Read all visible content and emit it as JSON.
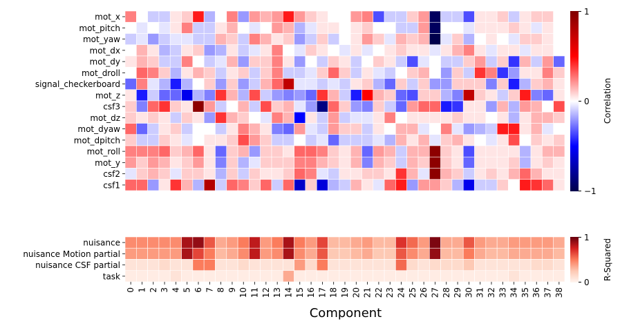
{
  "chart_data": [
    {
      "type": "heatmap",
      "name": "correlation",
      "rows": [
        "mot_x",
        "mot_pitch",
        "mot_yaw",
        "mot_dx",
        "mot_dy",
        "mot_droll",
        "signal_checkerboard",
        "mot_z",
        "csf3",
        "mot_dz",
        "mot_dyaw",
        "mot_dpitch",
        "mot_roll",
        "mot_y",
        "csf2",
        "csf1"
      ],
      "columns": [
        "0",
        "1",
        "2",
        "3",
        "4",
        "5",
        "6",
        "7",
        "8",
        "9",
        "10",
        "11",
        "12",
        "13",
        "14",
        "15",
        "16",
        "17",
        "18",
        "19",
        "20",
        "21",
        "22",
        "23",
        "24",
        "25",
        "26",
        "27",
        "28",
        "29",
        "30",
        "31",
        "32",
        "33",
        "34",
        "35",
        "36",
        "37",
        "38"
      ],
      "values": [
        [
          0.25,
          0,
          -0.1,
          -0.1,
          0.05,
          0.1,
          0.45,
          -0.15,
          0,
          0.25,
          -0.2,
          0.2,
          0.15,
          0.2,
          0.45,
          0.2,
          0.1,
          0.05,
          0,
          0,
          0.2,
          0.25,
          -0.35,
          -0.1,
          -0.1,
          0.1,
          0.2,
          -0.95,
          -0.1,
          -0.1,
          -0.35,
          0.05,
          0.05,
          0.1,
          -0.1,
          0.05,
          0.1,
          0.1,
          0
        ],
        [
          0,
          -0.05,
          0,
          -0.05,
          0.05,
          0.25,
          -0.1,
          -0.1,
          0.05,
          0.15,
          0,
          -0.05,
          0,
          0.2,
          0.15,
          -0.15,
          -0.05,
          0.05,
          0.05,
          0,
          0.05,
          0.1,
          0,
          0,
          -0.1,
          -0.1,
          0.2,
          -0.95,
          0,
          0,
          -0.05,
          0.05,
          0.05,
          0.05,
          0.1,
          0.05,
          -0.05,
          0.05,
          0
        ],
        [
          -0.1,
          -0.05,
          -0.2,
          -0.1,
          -0.05,
          -0.05,
          -0.1,
          -0.1,
          0.15,
          0.1,
          -0.1,
          0.25,
          0.15,
          0.05,
          0.1,
          -0.2,
          -0.1,
          0.1,
          -0.1,
          0,
          0.05,
          0.2,
          0.1,
          -0.05,
          0.15,
          0.1,
          0.15,
          -1,
          -0.05,
          0.1,
          -0.15,
          0,
          0.05,
          0,
          -0.05,
          0.1,
          0.1,
          0.05,
          0
        ],
        [
          0,
          0.15,
          0.05,
          -0.15,
          -0.1,
          0.05,
          0.1,
          -0.2,
          -0.15,
          0.05,
          -0.1,
          -0.05,
          0.05,
          0.25,
          0,
          -0.05,
          0.1,
          0.05,
          0,
          -0.05,
          0.05,
          -0.05,
          0,
          0.05,
          0.1,
          0.05,
          0.05,
          -0.05,
          0.05,
          0.15,
          0.25,
          0.05,
          -0.05,
          0.05,
          0.05,
          -0.05,
          0.05,
          0.05,
          0
        ],
        [
          0.05,
          0.15,
          0.1,
          -0.1,
          -0.1,
          0.25,
          0,
          -0.1,
          -0.05,
          0.15,
          -0.2,
          0.1,
          0.1,
          0.25,
          0.05,
          -0.2,
          0,
          -0.1,
          0.1,
          0.05,
          -0.1,
          0,
          0.1,
          0.05,
          -0.1,
          -0.35,
          -0.05,
          0,
          -0.1,
          -0.1,
          0.1,
          0.2,
          -0.1,
          0.1,
          -0.4,
          0.15,
          -0.1,
          0.2,
          -0.3
        ],
        [
          0,
          0.3,
          0.25,
          0.1,
          -0.15,
          0.05,
          0.15,
          0.1,
          -0.1,
          0.05,
          0.1,
          -0.1,
          0.1,
          0.25,
          -0.1,
          -0.1,
          -0.05,
          0.1,
          0.3,
          0.1,
          -0.1,
          0.05,
          -0.05,
          -0.1,
          0,
          0.1,
          0.15,
          0,
          -0.2,
          0.1,
          -0.1,
          0.4,
          0.25,
          -0.4,
          -0.2,
          0.05,
          0.05,
          0.25,
          0.1
        ],
        [
          -0.3,
          0.25,
          -0.05,
          -0.15,
          -0.45,
          -0.15,
          0,
          0.1,
          -0.2,
          0.1,
          -0.2,
          -0.1,
          0.15,
          0.3,
          0.75,
          -0.05,
          -0.05,
          -0.1,
          -0.05,
          -0.1,
          0.05,
          0.1,
          -0.15,
          -0.3,
          0.1,
          -0.1,
          0.1,
          -0.2,
          -0.2,
          0.1,
          0.1,
          0.1,
          -0.25,
          0.1,
          -0.45,
          -0.15,
          0.1,
          0.15,
          0.05
        ],
        [
          0.05,
          -0.45,
          -0.1,
          -0.3,
          -0.3,
          -0.55,
          -0.15,
          -0.25,
          0.4,
          0.15,
          -0.15,
          0.35,
          -0.1,
          -0.2,
          -0.25,
          -0.2,
          -0.3,
          0.4,
          0.15,
          -0.1,
          -0.45,
          0.5,
          0.15,
          0.1,
          -0.3,
          -0.35,
          0.1,
          0.1,
          -0.15,
          -0.25,
          0.75,
          0.1,
          0.05,
          -0.1,
          0.1,
          0.45,
          -0.25,
          -0.3,
          0.05
        ],
        [
          0.1,
          -0.25,
          0.3,
          0.4,
          0.1,
          0.05,
          0.95,
          0.2,
          -0.1,
          0,
          0.15,
          -0.1,
          0.35,
          0.1,
          0.15,
          -0.05,
          -0.2,
          -0.85,
          0.3,
          0.1,
          -0.2,
          -0.25,
          0.1,
          -0.1,
          -0.3,
          0.2,
          0.3,
          0.3,
          -0.45,
          -0.4,
          0.05,
          0.05,
          -0.2,
          0.15,
          -0.15,
          0.2,
          0.15,
          0,
          0.35
        ],
        [
          0.1,
          0.05,
          0.1,
          0.05,
          -0.1,
          0.1,
          0.05,
          -0.2,
          0.4,
          0.15,
          0.1,
          0,
          -0.05,
          0.25,
          0.15,
          -0.5,
          0.05,
          -0.1,
          0.2,
          -0.1,
          -0.05,
          -0.05,
          0.05,
          0.25,
          0,
          0.05,
          0.05,
          0.05,
          0.05,
          0.1,
          0.05,
          0.05,
          0,
          0.05,
          -0.15,
          0.05,
          0.15,
          0.15,
          0.1
        ],
        [
          0.3,
          -0.3,
          -0.1,
          0.05,
          0.1,
          -0.1,
          0,
          0,
          -0.1,
          0.05,
          0.25,
          0.15,
          0.05,
          -0.25,
          -0.3,
          0.2,
          -0.05,
          -0.1,
          0.2,
          0.1,
          0.1,
          -0.1,
          0.05,
          0,
          0.15,
          0.15,
          -0.05,
          0,
          0.25,
          -0.05,
          -0.2,
          -0.15,
          -0.1,
          0.45,
          0.45,
          0.05,
          0.15,
          -0.05,
          0
        ],
        [
          0.1,
          -0.1,
          -0.1,
          0.1,
          0.05,
          -0.05,
          0,
          0.05,
          0.05,
          0.1,
          0.35,
          0.2,
          0.1,
          -0.1,
          -0.1,
          0,
          -0.1,
          -0.05,
          -0.3,
          -0.1,
          -0.1,
          -0.1,
          -0.05,
          -0.15,
          0.15,
          0.05,
          0.15,
          -0.05,
          0.1,
          0.15,
          0.05,
          0,
          -0.05,
          0.05,
          0.35,
          0,
          0.1,
          0.05,
          0.1
        ],
        [
          0.25,
          0.25,
          0.25,
          0.3,
          0.1,
          0.15,
          0.3,
          0.05,
          -0.3,
          0.1,
          0.15,
          -0.2,
          0.1,
          0.1,
          0.05,
          0.3,
          0.3,
          0.25,
          0.1,
          0.05,
          0.15,
          -0.3,
          0.2,
          0.15,
          -0.1,
          0.15,
          0.15,
          0.95,
          0.1,
          0.05,
          -0.35,
          0.05,
          0.05,
          0.05,
          0.05,
          -0.15,
          0.05,
          0.15,
          0.15
        ],
        [
          0.2,
          0.1,
          0.2,
          0.15,
          0.05,
          0.1,
          0.2,
          0.05,
          -0.25,
          0.1,
          -0.15,
          -0.05,
          0.1,
          0.1,
          0.1,
          0.25,
          0.25,
          0.15,
          0.1,
          0.05,
          0.15,
          -0.25,
          0.15,
          0.1,
          -0.1,
          0.15,
          0.1,
          0.95,
          0.1,
          0.05,
          -0.3,
          0.05,
          0.05,
          0.05,
          0.1,
          -0.15,
          0.05,
          0.1,
          0.05
        ],
        [
          -0.05,
          0.1,
          0.15,
          0.1,
          -0.05,
          0.1,
          0.1,
          0.05,
          -0.15,
          0.1,
          -0.1,
          0.1,
          0.05,
          0.05,
          0.1,
          0.3,
          0.25,
          -0.05,
          -0.1,
          0.05,
          0.05,
          0.1,
          0.1,
          0.05,
          0.4,
          0.15,
          -0.05,
          0.95,
          0.15,
          0.1,
          -0.1,
          0.05,
          0.1,
          0.05,
          0.15,
          0.3,
          0.15,
          0.05,
          0.05
        ],
        [
          0.3,
          0.3,
          -0.2,
          0.05,
          0.4,
          0.15,
          -0.15,
          0.8,
          -0.1,
          0.3,
          0.25,
          0.1,
          0.3,
          -0.1,
          0.3,
          -0.65,
          0.1,
          -0.6,
          -0.15,
          -0.1,
          0.15,
          0.05,
          -0.05,
          0.3,
          0.45,
          -0.2,
          0.2,
          0.2,
          0.1,
          -0.15,
          -0.55,
          -0.1,
          -0.1,
          0.1,
          0,
          0.45,
          0.4,
          0.3,
          0.05
        ]
      ],
      "colorbar_label": "Correlation",
      "colorbar_ticks": [
        "1",
        "0",
        "−1"
      ],
      "vmin": -1,
      "vmax": 1,
      "colormap": "seismic",
      "colors": {
        "low": "#00004c",
        "mid_low": "#0000ff",
        "mid": "#ffffff",
        "mid_high": "#ff0000",
        "high": "#800000"
      }
    },
    {
      "type": "heatmap",
      "name": "r-squared",
      "rows": [
        "nuisance",
        "nuisance Motion partial",
        "nuisance CSF partial",
        "task"
      ],
      "columns": [
        "0",
        "1",
        "2",
        "3",
        "4",
        "5",
        "6",
        "7",
        "8",
        "9",
        "10",
        "11",
        "12",
        "13",
        "14",
        "15",
        "16",
        "17",
        "18",
        "19",
        "20",
        "21",
        "22",
        "23",
        "24",
        "25",
        "26",
        "27",
        "28",
        "29",
        "30",
        "31",
        "32",
        "33",
        "34",
        "35",
        "36",
        "37",
        "38"
      ],
      "values": [
        [
          0.45,
          0.45,
          0.45,
          0.45,
          0.45,
          0.85,
          0.9,
          0.6,
          0.35,
          0.4,
          0.5,
          0.8,
          0.4,
          0.5,
          0.85,
          0.5,
          0.4,
          0.65,
          0.3,
          0.3,
          0.35,
          0.4,
          0.3,
          0.3,
          0.7,
          0.55,
          0.4,
          0.95,
          0.35,
          0.35,
          0.6,
          0.4,
          0.35,
          0.35,
          0.4,
          0.4,
          0.4,
          0.4,
          0.35
        ],
        [
          0.4,
          0.4,
          0.4,
          0.4,
          0.4,
          0.85,
          0.65,
          0.5,
          0.3,
          0.35,
          0.45,
          0.8,
          0.4,
          0.45,
          0.85,
          0.45,
          0.35,
          0.6,
          0.25,
          0.25,
          0.3,
          0.35,
          0.25,
          0.25,
          0.6,
          0.45,
          0.35,
          0.9,
          0.3,
          0.3,
          0.5,
          0.35,
          0.3,
          0.3,
          0.35,
          0.35,
          0.35,
          0.35,
          0.3
        ],
        [
          0.1,
          0.1,
          0.1,
          0.15,
          0.1,
          0.1,
          0.5,
          0.5,
          0.1,
          0.1,
          0.15,
          0.1,
          0.1,
          0.1,
          0.1,
          0.4,
          0.15,
          0.5,
          0.1,
          0.1,
          0.1,
          0.1,
          0.1,
          0.1,
          0.55,
          0.15,
          0.1,
          0.15,
          0.15,
          0.15,
          0.25,
          0.1,
          0.1,
          0.1,
          0.1,
          0.1,
          0.15,
          0.15,
          0.1
        ],
        [
          0.05,
          0.05,
          0.05,
          0.05,
          0.1,
          0.05,
          0.05,
          0.05,
          0.05,
          0.05,
          0.05,
          0.05,
          0.05,
          0.05,
          0.35,
          0.05,
          0.05,
          0.05,
          0.05,
          0.05,
          0.05,
          0.05,
          0.05,
          0.05,
          0.05,
          0.05,
          0.05,
          0.05,
          0.05,
          0.05,
          0.05,
          0.05,
          0.05,
          0.05,
          0.1,
          0.05,
          0.05,
          0.05,
          0.05
        ]
      ],
      "colorbar_label": "R-Squared",
      "colorbar_ticks": [
        "1",
        "0"
      ],
      "vmin": 0,
      "vmax": 1,
      "colormap": "Reds",
      "colors": {
        "low": "#fff5f0",
        "mid": "#fb6a4a",
        "high": "#67000d"
      }
    }
  ],
  "xlabel": "Component"
}
